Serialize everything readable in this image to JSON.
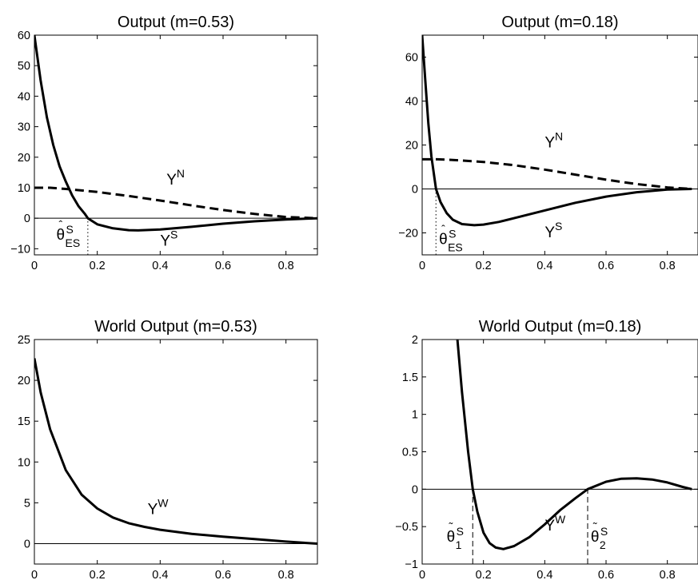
{
  "chart_data": [
    {
      "type": "line",
      "title": "Output (m=0.53)",
      "xlabel": "",
      "ylabel": "",
      "xlim": [
        0,
        0.9
      ],
      "ylim": [
        -12,
        60
      ],
      "xticks": [
        0,
        0.2,
        0.4,
        0.6,
        0.8
      ],
      "xtick_labels": [
        "0",
        "0.2",
        "0.4",
        "0.6",
        "0.8"
      ],
      "yticks": [
        -10,
        0,
        10,
        20,
        30,
        40,
        50,
        60
      ],
      "ytick_labels": [
        "−10",
        "0",
        "10",
        "20",
        "30",
        "40",
        "50",
        "60"
      ],
      "grid": false,
      "zero_line": true,
      "series": [
        {
          "name": "Y^S",
          "style": "solid-thick",
          "x": [
            0,
            0.02,
            0.04,
            0.06,
            0.08,
            0.1,
            0.12,
            0.14,
            0.16,
            0.17,
            0.2,
            0.25,
            0.3,
            0.33,
            0.4,
            0.5,
            0.6,
            0.7,
            0.8,
            0.9
          ],
          "y": [
            60,
            45,
            33,
            24,
            17,
            12,
            7.5,
            4,
            1.5,
            0,
            -2,
            -3.3,
            -3.9,
            -4,
            -3.7,
            -2.8,
            -1.8,
            -1,
            -0.4,
            0
          ]
        },
        {
          "name": "Y^N",
          "style": "dashed-thick",
          "x": [
            0,
            0.05,
            0.1,
            0.2,
            0.3,
            0.4,
            0.5,
            0.6,
            0.7,
            0.8,
            0.9
          ],
          "y": [
            10,
            10,
            9.6,
            8.6,
            7.3,
            5.8,
            4.2,
            2.7,
            1.4,
            0.4,
            0
          ]
        }
      ],
      "markers": [
        {
          "x": 0.17,
          "style": "dotted"
        }
      ],
      "annotations": [
        {
          "kind": "Y",
          "base": "Y",
          "sup": "N",
          "x": 0.42,
          "y": 11
        },
        {
          "kind": "Y",
          "base": "Y",
          "sup": "S",
          "x": 0.4,
          "y": -9
        },
        {
          "kind": "theta",
          "mark": "^",
          "sup": "S",
          "sub": "ES",
          "x": 0.07,
          "y": -7
        }
      ]
    },
    {
      "type": "line",
      "title": "Output (m=0.18)",
      "xlabel": "",
      "ylabel": "",
      "xlim": [
        0,
        0.9
      ],
      "ylim": [
        -30,
        70
      ],
      "xticks": [
        0,
        0.2,
        0.4,
        0.6,
        0.8
      ],
      "xtick_labels": [
        "0",
        "0.2",
        "0.4",
        "0.6",
        "0.8"
      ],
      "yticks": [
        -20,
        0,
        20,
        40,
        60
      ],
      "ytick_labels": [
        "−20",
        "0",
        "20",
        "40",
        "60"
      ],
      "grid": false,
      "zero_line": true,
      "series": [
        {
          "name": "Y^S",
          "style": "solid-thick",
          "x": [
            0,
            0.01,
            0.02,
            0.03,
            0.045,
            0.06,
            0.08,
            0.1,
            0.13,
            0.17,
            0.2,
            0.25,
            0.3,
            0.4,
            0.5,
            0.6,
            0.7,
            0.8,
            0.88
          ],
          "y": [
            70,
            50,
            30,
            15,
            0,
            -6,
            -11,
            -14,
            -16,
            -16.5,
            -16.2,
            -15,
            -13.3,
            -9.8,
            -6.3,
            -3.5,
            -1.5,
            -0.3,
            0
          ]
        },
        {
          "name": "Y^N",
          "style": "dashed-thick",
          "x": [
            0,
            0.05,
            0.1,
            0.2,
            0.3,
            0.4,
            0.5,
            0.6,
            0.7,
            0.8,
            0.88
          ],
          "y": [
            13.5,
            13.5,
            13.2,
            12.3,
            10.8,
            8.8,
            6.5,
            4.2,
            2.2,
            0.7,
            0
          ]
        }
      ],
      "markers": [
        {
          "x": 0.045,
          "style": "dotted"
        }
      ],
      "annotations": [
        {
          "kind": "Y",
          "base": "Y",
          "sup": "N",
          "x": 0.4,
          "y": 19
        },
        {
          "kind": "Y",
          "base": "Y",
          "sup": "S",
          "x": 0.4,
          "y": -22
        },
        {
          "kind": "theta",
          "mark": "^",
          "sup": "S",
          "sub": "ES",
          "x": 0.055,
          "y": -25
        }
      ]
    },
    {
      "type": "line",
      "title": "World Output (m=0.53)",
      "xlabel": "",
      "ylabel": "",
      "xlim": [
        0,
        0.9
      ],
      "ylim": [
        -2.5,
        25
      ],
      "xticks": [
        0,
        0.2,
        0.4,
        0.6,
        0.8
      ],
      "xtick_labels": [
        "0",
        "0.2",
        "0.4",
        "0.6",
        "0.8"
      ],
      "yticks": [
        0,
        5,
        10,
        15,
        20,
        25
      ],
      "ytick_labels": [
        "0",
        "5",
        "10",
        "15",
        "20",
        "25"
      ],
      "grid": false,
      "zero_line": true,
      "series": [
        {
          "name": "Y^W",
          "style": "solid-thick",
          "x": [
            0,
            0.02,
            0.05,
            0.1,
            0.15,
            0.2,
            0.25,
            0.3,
            0.35,
            0.4,
            0.5,
            0.6,
            0.7,
            0.8,
            0.9
          ],
          "y": [
            22.7,
            18.5,
            14,
            9,
            6,
            4.3,
            3.2,
            2.5,
            2.05,
            1.7,
            1.2,
            0.85,
            0.55,
            0.25,
            0
          ]
        }
      ],
      "markers": [],
      "annotations": [
        {
          "kind": "Y",
          "base": "Y",
          "sup": "W",
          "x": 0.36,
          "y": 3.6
        }
      ]
    },
    {
      "type": "line",
      "title": "World Output (m=0.18)",
      "xlabel": "",
      "ylabel": "",
      "xlim": [
        0,
        0.9
      ],
      "ylim": [
        -1,
        2
      ],
      "xticks": [
        0,
        0.2,
        0.4,
        0.6,
        0.8
      ],
      "xtick_labels": [
        "0",
        "0.2",
        "0.4",
        "0.6",
        "0.8"
      ],
      "yticks": [
        -1,
        -0.5,
        0,
        0.5,
        1,
        1.5,
        2
      ],
      "ytick_labels": [
        "−1",
        "−0.5",
        "0",
        "0.5",
        "1",
        "1.5",
        "2"
      ],
      "grid": false,
      "zero_line": true,
      "series": [
        {
          "name": "Y^W",
          "style": "solid-thick",
          "x": [
            0.115,
            0.13,
            0.15,
            0.165,
            0.18,
            0.2,
            0.22,
            0.24,
            0.265,
            0.3,
            0.35,
            0.4,
            0.45,
            0.5,
            0.54,
            0.6,
            0.65,
            0.7,
            0.75,
            0.8,
            0.85,
            0.88
          ],
          "y": [
            2,
            1.3,
            0.5,
            0,
            -0.3,
            -0.58,
            -0.72,
            -0.78,
            -0.8,
            -0.76,
            -0.64,
            -0.47,
            -0.28,
            -0.12,
            0,
            0.1,
            0.14,
            0.145,
            0.13,
            0.09,
            0.03,
            0
          ]
        }
      ],
      "markers": [
        {
          "x": 0.165,
          "style": "dashed"
        },
        {
          "x": 0.54,
          "style": "dashed"
        }
      ],
      "annotations": [
        {
          "kind": "Y",
          "base": "Y",
          "sup": "W",
          "x": 0.4,
          "y": -0.55
        },
        {
          "kind": "theta",
          "mark": "~",
          "sup": "S",
          "sub": "1",
          "x": 0.08,
          "y": -0.7
        },
        {
          "kind": "theta",
          "mark": "~",
          "sup": "S",
          "sub": "2",
          "x": 0.55,
          "y": -0.7
        }
      ]
    }
  ]
}
